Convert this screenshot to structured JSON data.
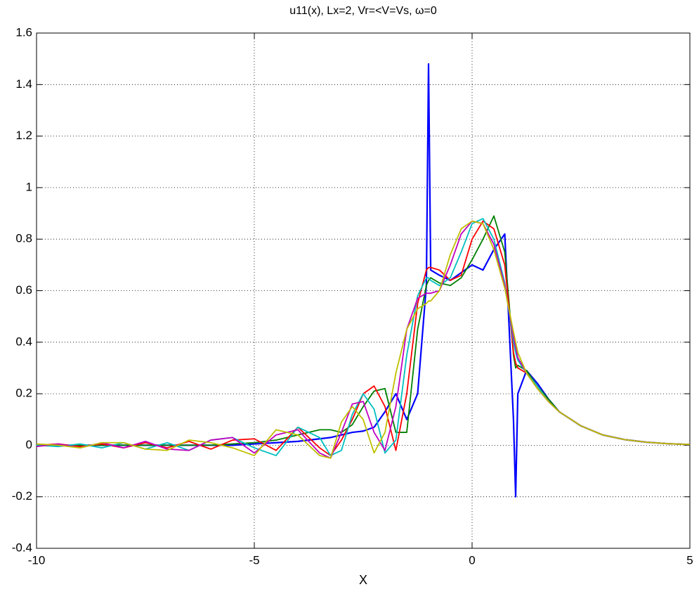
{
  "chart_data": {
    "type": "line",
    "title": "u11(x), Lx=2,  Vr=<V=Vs, ω=0",
    "x_label": "X",
    "x": [
      -10,
      -9.5,
      -9,
      -8.5,
      -8,
      -7.5,
      -7,
      -6.5,
      -6,
      -5.5,
      -5,
      -4.5,
      -4,
      -3.5,
      -3.25,
      -3,
      -2.75,
      -2.5,
      -2.25,
      -2,
      -1.75,
      -1.5,
      -1.25,
      -1.05,
      -1,
      -0.95,
      -0.75,
      -0.5,
      -0.25,
      0,
      0.25,
      0.5,
      0.75,
      0.95,
      1,
      1.05,
      1.25,
      1.5,
      1.75,
      2,
      2.5,
      3,
      3.5,
      4,
      4.5,
      5
    ],
    "series": [
      {
        "color": "#0000ff",
        "values": [
          0,
          0,
          0,
          0,
          0,
          0,
          0,
          0,
          0,
          0,
          0.005,
          0.01,
          0.015,
          0.025,
          0.03,
          0.04,
          0.05,
          0.055,
          0.07,
          0.13,
          0.2,
          0.1,
          0.2,
          0.62,
          1.48,
          0.68,
          0.66,
          0.64,
          0.67,
          0.7,
          0.68,
          0.76,
          0.82,
          0.1,
          -0.2,
          0.2,
          0.29,
          0.24,
          0.18,
          0.13,
          0.075,
          0.04,
          0.022,
          0.012,
          0.006,
          0.003
        ]
      },
      {
        "color": "#008000",
        "values": [
          0,
          0,
          0,
          0,
          0,
          0,
          0,
          0,
          0,
          0.005,
          0.01,
          0.02,
          0.04,
          0.06,
          0.06,
          0.05,
          0.08,
          0.15,
          0.21,
          0.22,
          0.05,
          0.05,
          0.45,
          0.62,
          0.64,
          0.65,
          0.63,
          0.62,
          0.65,
          0.72,
          0.8,
          0.89,
          0.75,
          0.35,
          0.3,
          0.31,
          0.29,
          0.23,
          0.18,
          0.13,
          0.075,
          0.04,
          0.022,
          0.012,
          0.006,
          0.003
        ]
      },
      {
        "color": "#ff0000",
        "values": [
          0,
          0.005,
          -0.005,
          0.005,
          -0.01,
          0.01,
          -0.01,
          0.015,
          -0.015,
          0.02,
          0.025,
          -0.02,
          0.07,
          -0.01,
          -0.04,
          0.02,
          0.1,
          0.2,
          0.23,
          0.15,
          -0.02,
          0.2,
          0.55,
          0.68,
          0.69,
          0.69,
          0.68,
          0.64,
          0.66,
          0.8,
          0.87,
          0.84,
          0.7,
          0.36,
          0.32,
          0.3,
          0.28,
          0.23,
          0.17,
          0.13,
          0.075,
          0.04,
          0.022,
          0.012,
          0.006,
          0.003
        ]
      },
      {
        "color": "#00bfbf",
        "values": [
          0,
          -0.005,
          0.005,
          -0.01,
          0.01,
          -0.015,
          0.01,
          -0.02,
          0.02,
          0.03,
          -0.01,
          -0.04,
          0.07,
          0.03,
          -0.04,
          -0.02,
          0.12,
          0.2,
          0.14,
          -0.03,
          0.02,
          0.35,
          0.58,
          0.65,
          0.65,
          0.64,
          0.62,
          0.65,
          0.75,
          0.86,
          0.88,
          0.8,
          0.63,
          0.4,
          0.36,
          0.33,
          0.28,
          0.23,
          0.17,
          0.13,
          0.075,
          0.04,
          0.022,
          0.012,
          0.006,
          0.003
        ]
      },
      {
        "color": "#bf00bf",
        "values": [
          -0.005,
          0.005,
          -0.01,
          0.01,
          -0.01,
          0.015,
          -0.015,
          -0.02,
          0.02,
          0.03,
          -0.03,
          0.04,
          0.06,
          -0.03,
          -0.05,
          0.05,
          0.16,
          0.17,
          0.05,
          -0.02,
          0.15,
          0.45,
          0.57,
          0.59,
          0.59,
          0.59,
          0.6,
          0.7,
          0.82,
          0.87,
          0.86,
          0.78,
          0.62,
          0.42,
          0.38,
          0.34,
          0.28,
          0.22,
          0.17,
          0.13,
          0.075,
          0.04,
          0.022,
          0.012,
          0.006,
          0.003
        ]
      },
      {
        "color": "#bfbf00",
        "values": [
          0.005,
          0,
          -0.01,
          0.01,
          0.01,
          -0.015,
          -0.02,
          0.02,
          0.01,
          -0.01,
          -0.04,
          0.06,
          0.04,
          -0.04,
          -0.05,
          0.09,
          0.15,
          0.1,
          -0.03,
          0.05,
          0.28,
          0.45,
          0.53,
          0.55,
          0.56,
          0.56,
          0.6,
          0.74,
          0.84,
          0.87,
          0.86,
          0.76,
          0.61,
          0.44,
          0.4,
          0.36,
          0.28,
          0.22,
          0.17,
          0.13,
          0.075,
          0.04,
          0.022,
          0.012,
          0.006,
          0.003
        ]
      }
    ],
    "xlim": [
      -10,
      5
    ],
    "xticks": [
      -10,
      -5,
      0,
      5
    ],
    "ylim": [
      -0.4,
      1.6
    ],
    "yticks": [
      -0.4,
      -0.2,
      0,
      0.2,
      0.4,
      0.6,
      0.8,
      1,
      1.2,
      1.4,
      1.6
    ],
    "grid": true
  }
}
